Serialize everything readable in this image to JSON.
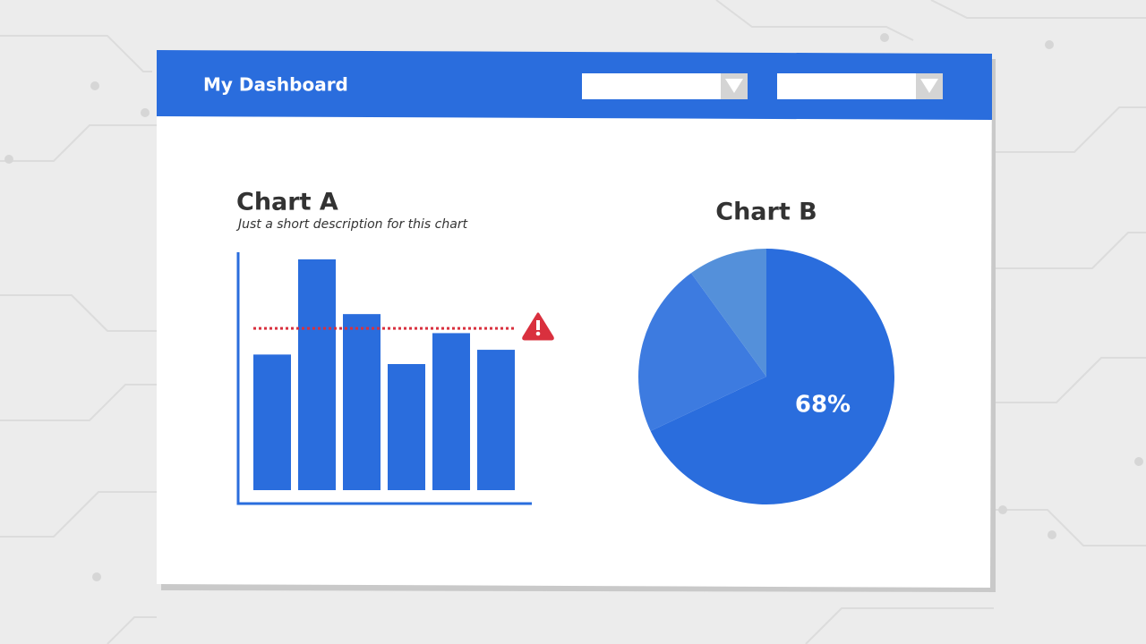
{
  "header": {
    "title": "My Dashboard"
  },
  "chart_data": [
    {
      "type": "bar",
      "title": "Chart A",
      "subtitle": "Just a short description for this chart",
      "values": [
        57,
        97,
        74,
        53,
        66,
        59
      ],
      "color": "#2a6ddd",
      "ylim": [
        0,
        100
      ],
      "threshold": 68,
      "threshold_color": "#d9303e"
    },
    {
      "type": "pie",
      "title": "Chart B",
      "values": [
        68,
        22,
        10
      ],
      "value_labels": [
        "68%",
        null,
        null
      ],
      "colors": [
        "#2a6ddd",
        "#3d7be0",
        "#5490da"
      ]
    }
  ]
}
